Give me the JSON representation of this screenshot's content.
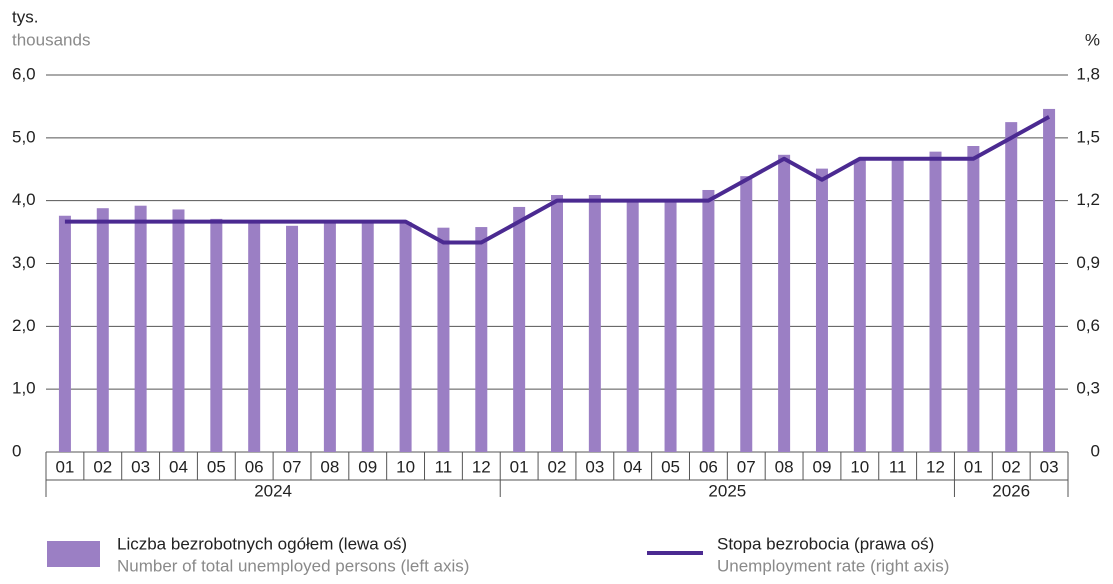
{
  "chart_data": {
    "type": "bar_line",
    "y_label": "tys.",
    "y_label_en": "thousands",
    "y2_label": "%",
    "categories": [
      "01",
      "02",
      "03",
      "04",
      "05",
      "06",
      "07",
      "08",
      "09",
      "10",
      "11",
      "12",
      "01",
      "02",
      "03",
      "04",
      "05",
      "06",
      "07",
      "08",
      "09",
      "10",
      "11",
      "12",
      "01",
      "02",
      "03"
    ],
    "years": [
      "2024",
      "2025",
      "2026"
    ],
    "series": [
      {
        "name": "Liczba bezrobotnych ogółem (lewa oś)",
        "name_en": "Number of total unemployed persons (left axis)",
        "type": "bar",
        "color": "#9b7fc4",
        "values": [
          3.76,
          3.88,
          3.92,
          3.86,
          3.71,
          3.69,
          3.6,
          3.68,
          3.69,
          3.66,
          3.57,
          3.58,
          3.9,
          4.09,
          4.09,
          4.01,
          4.0,
          4.17,
          4.39,
          4.73,
          4.51,
          4.65,
          4.65,
          4.78,
          4.87,
          5.25,
          5.46
        ]
      },
      {
        "name": "Stopa bezrobocia (prawa oś)",
        "name_en": "Unemployment rate (right axis)",
        "type": "line",
        "axis": "y2",
        "color": "#4b2a91",
        "values": [
          1.1,
          1.1,
          1.1,
          1.1,
          1.1,
          1.1,
          1.1,
          1.1,
          1.1,
          1.1,
          1.0,
          1.0,
          1.1,
          1.2,
          1.2,
          1.2,
          1.2,
          1.2,
          1.3,
          1.4,
          1.3,
          1.4,
          1.4,
          1.4,
          1.4,
          1.5,
          1.6
        ]
      }
    ],
    "ylim": [
      0,
      6
    ],
    "yticks": [
      0,
      {
        "value": 1,
        "label": "1,0"
      },
      {
        "value": 2,
        "label": "2,0"
      },
      {
        "value": 3,
        "label": "3,0"
      },
      {
        "value": 4,
        "label": "4,0"
      },
      {
        "value": 5,
        "label": "5,0"
      },
      {
        "value": 6,
        "label": "6,0"
      }
    ],
    "y2lim": [
      0,
      1.8
    ],
    "y2ticks": [
      0,
      {
        "value": 0.3,
        "label": "0,3"
      },
      {
        "value": 0.6,
        "label": "0,6"
      },
      {
        "value": 0.9,
        "label": "0,9"
      },
      {
        "value": 1.2,
        "label": "1,2"
      },
      {
        "value": 1.5,
        "label": "1,5"
      },
      {
        "value": 1.8,
        "label": "1,8"
      }
    ],
    "grid": true
  }
}
